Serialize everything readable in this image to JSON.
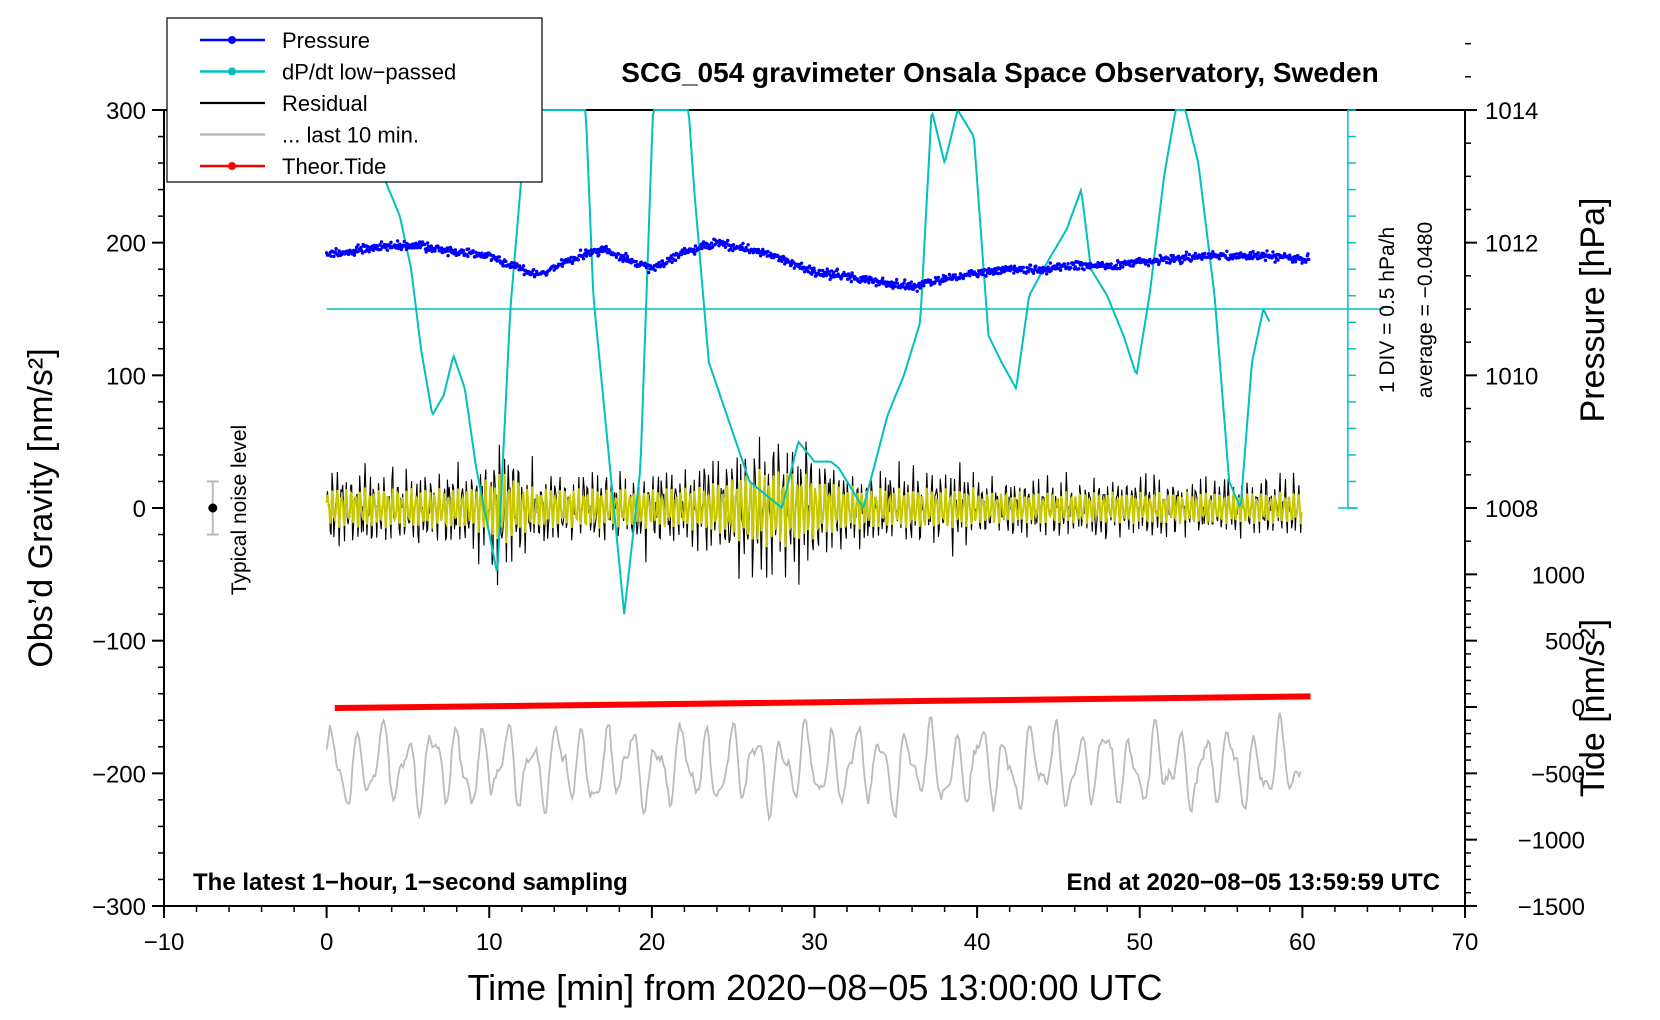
{
  "chart_data": {
    "type": "line",
    "title": "SCG_054 gravimeter Onsala Space Observatory, Sweden",
    "xlabel": "Time [min] from 2020−08−05 13:00:00 UTC",
    "ylabel_left": "Obs’d Gravity [nm/s²]",
    "ylabel_right_pressure": "Pressure [hPa]",
    "ylabel_right_tide": "Tide [nm/s²]",
    "xlim": [
      -10,
      70
    ],
    "ylim": [
      -300,
      300
    ],
    "x_ticks": [
      {
        "value": -10,
        "label": "−10"
      },
      {
        "value": 0,
        "label": "0"
      },
      {
        "value": 10,
        "label": "10"
      },
      {
        "value": 20,
        "label": "20"
      },
      {
        "value": 30,
        "label": "30"
      },
      {
        "value": 40,
        "label": "40"
      },
      {
        "value": 50,
        "label": "50"
      },
      {
        "value": 60,
        "label": "60"
      },
      {
        "value": 70,
        "label": "70"
      }
    ],
    "y_ticks": [
      {
        "value": 300,
        "label": "300"
      },
      {
        "value": 200,
        "label": "200"
      },
      {
        "value": 100,
        "label": "100"
      },
      {
        "value": 0,
        "label": "0"
      },
      {
        "value": -100,
        "label": "−100"
      },
      {
        "value": -200,
        "label": "−200"
      },
      {
        "value": -300,
        "label": "−300"
      }
    ],
    "pressure_axis": {
      "ticks": [
        {
          "value": 1014,
          "label": "1014"
        },
        {
          "value": 1012,
          "label": "1012"
        },
        {
          "value": 1010,
          "label": "1010"
        },
        {
          "value": 1008,
          "label": "1008"
        }
      ],
      "value_at_gravity_200": 1012,
      "hpa_per_gravity_unit": 0.02
    },
    "tide_axis": {
      "ticks": [
        {
          "value": 1000,
          "label": "1000"
        },
        {
          "value": 500,
          "label": "500"
        },
        {
          "value": 0,
          "label": "0"
        },
        {
          "value": -500,
          "label": "−500"
        },
        {
          "value": -1000,
          "label": "−1000"
        },
        {
          "value": -1500,
          "label": "−1500"
        }
      ],
      "value_at_gravity_minus150": 0,
      "tide_per_gravity_unit": 10
    },
    "legend": [
      {
        "name": "Pressure",
        "color": "#0000ff",
        "marker": "dot"
      },
      {
        "name": "dP/dt low−passed",
        "color": "#00c0c0",
        "marker": "dot"
      },
      {
        "name": "Residual",
        "color": "#000000",
        "marker": "none"
      },
      {
        "name": "... last 10 min.",
        "color": "#bbbbbb",
        "marker": "none"
      },
      {
        "name": "Theor.Tide",
        "color": "#ff0000",
        "marker": "dot"
      }
    ],
    "legend_position": "top-left",
    "residual_color": "#000000",
    "residual_overlay_color": "#c8c800",
    "last10_color": "#bbbbbb",
    "pressure_color": "#0000ff",
    "dpdt_color": "#00c0c0",
    "tide_color": "#ff0000",
    "series": [
      {
        "name": "Pressure",
        "unit": "hPa",
        "x": [
          0,
          2,
          4,
          6,
          8,
          10,
          12,
          13,
          15,
          17,
          19,
          20,
          22,
          24,
          26,
          28,
          30,
          32,
          34,
          36,
          38,
          40,
          42,
          44,
          46,
          48,
          50,
          52,
          54,
          56,
          58,
          60
        ],
        "values": [
          1011.8,
          1011.9,
          1011.95,
          1011.95,
          1011.85,
          1011.8,
          1011.6,
          1011.5,
          1011.75,
          1011.9,
          1011.7,
          1011.6,
          1011.85,
          1012.0,
          1011.9,
          1011.75,
          1011.55,
          1011.5,
          1011.4,
          1011.35,
          1011.45,
          1011.55,
          1011.6,
          1011.6,
          1011.65,
          1011.65,
          1011.7,
          1011.75,
          1011.8,
          1011.8,
          1011.8,
          1011.75
        ]
      },
      {
        "name": "dP/dt low−passed",
        "unit": "nm/s² plot units",
        "x": [
          3.5,
          4.5,
          5.2,
          5.8,
          6.5,
          7.2,
          7.8,
          8.5,
          9.2,
          10.5,
          11.3,
          12.4,
          13.0,
          15.9,
          16.4,
          18.3,
          19.3,
          20.1,
          21.5,
          22.2,
          22.6,
          23.5,
          26.0,
          28.0,
          29.0,
          30.0,
          31.0,
          31.5,
          33.0,
          34.5,
          35.5,
          36.5,
          37.2,
          38.0,
          38.8,
          39.8,
          40.7,
          41.5,
          42.4,
          43.2,
          44.3,
          45.5,
          46.4,
          47.0,
          48.0,
          49.0,
          49.8,
          50.6,
          51.5,
          52.2,
          52.8,
          53.6,
          54.6,
          55.5,
          56.2,
          56.9,
          57.6,
          58.0
        ],
        "values": [
          250,
          220,
          180,
          120,
          70,
          85,
          115,
          90,
          30,
          -50,
          150,
          310,
          310,
          310,
          160,
          -80,
          30,
          310,
          310,
          310,
          240,
          110,
          20,
          0,
          50,
          35,
          35,
          30,
          0,
          70,
          100,
          140,
          300,
          260,
          300,
          280,
          130,
          110,
          90,
          160,
          185,
          210,
          240,
          180,
          160,
          130,
          100,
          160,
          250,
          300,
          300,
          260,
          160,
          20,
          0,
          110,
          150,
          140
        ]
      },
      {
        "name": "Theor.Tide",
        "unit": "nm/s²",
        "x": [
          0.5,
          60.5
        ],
        "values": [
          -8,
          80
        ]
      }
    ],
    "dpdt_zero_line": 150,
    "pressure_scale_bar_label": "1 DIV = 0.5 hPa/h",
    "dpdt_average_label": "average = −0.0480",
    "typical_noise_label": "Typical noise level",
    "typical_noise": {
      "x": -7,
      "center": 0,
      "halfwidth": 20
    },
    "bottom_left_label": "The latest 1−hour, 1−second sampling",
    "bottom_right_label": "End at 2020−08−05 13:59:59 UTC"
  }
}
